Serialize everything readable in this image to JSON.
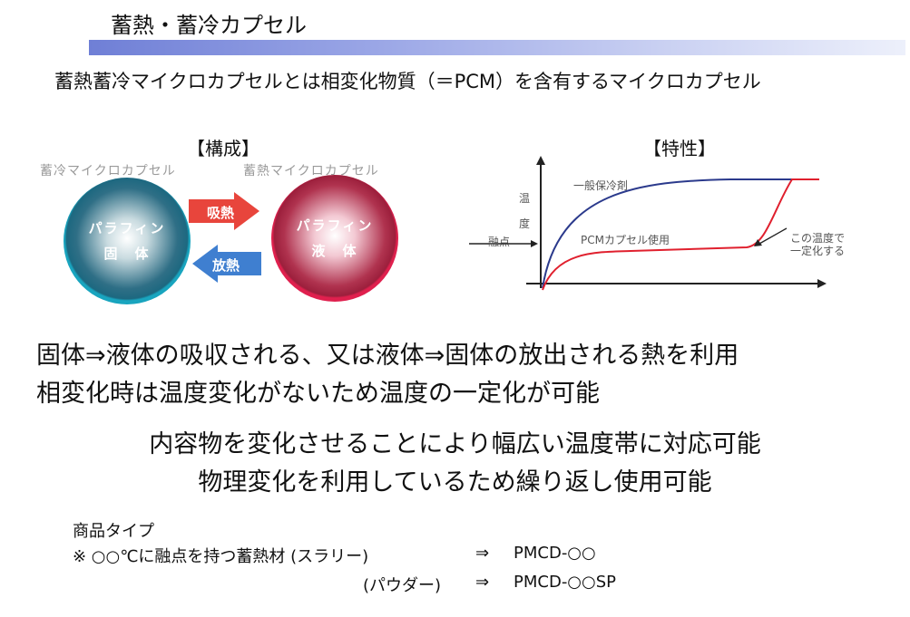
{
  "header": {
    "title": "蓄熱・蓄冷カプセル",
    "subtitle": "蓄熱蓄冷マイクロカプセルとは相変化物質（＝PCM）を含有するマイクロカプセル"
  },
  "composition": {
    "heading": "【構成】",
    "cool_label": "蓄冷マイクロカプセル",
    "heat_label": "蓄熱マイクロカプセル",
    "cool_circle": [
      "パラフィン",
      "固　体"
    ],
    "heat_circle": [
      "パラフィン",
      "液　体"
    ],
    "absorb_label": "吸熱",
    "release_label": "放熱"
  },
  "characteristics": {
    "heading": "【特性】",
    "ylabel": "温\n\n度",
    "melting_point": "融点",
    "annotation_general": "一般保冷剤",
    "annotation_pcm": "PCMカプセル使用",
    "annotation_constant": [
      "この温度で",
      "一定化する"
    ]
  },
  "body": {
    "line1": "固体⇒液体の吸収される、又は液体⇒固体の放出される熱を利用",
    "line2": "相変化時は温度変化がないため温度の一定化が可能",
    "line3": "内容物を変化させることにより幅広い温度帯に対応可能",
    "line4": "物理変化を利用しているため繰り返し使用可能"
  },
  "products": {
    "heading": "商品タイプ",
    "note_prefix": "※ ○○℃に融点を持つ蓄熱材 (スラリー)",
    "arrow": "⇒",
    "slurry_code": "PMCD-○○",
    "powder_type": "(パウダー)",
    "powder_code": "PMCD-○○SP"
  },
  "chart_data": {
    "type": "line",
    "title": "【特性】",
    "xlabel": "",
    "ylabel": "温度",
    "series": [
      {
        "name": "一般保冷剤",
        "color": "#2b3a8c"
      },
      {
        "name": "PCMカプセル使用",
        "color": "#e0202e"
      }
    ],
    "annotations": [
      "融点",
      "この温度で一定化する"
    ],
    "grid": false
  },
  "colors": {
    "title_bar": "#6f7fd6",
    "absorb_arrow": "#e8453c",
    "release_arrow": "#3f7fd0",
    "general_line": "#2b3a8c",
    "pcm_line": "#e0202e"
  }
}
